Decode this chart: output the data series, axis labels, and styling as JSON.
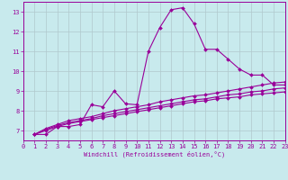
{
  "xlabel": "Windchill (Refroidissement éolien,°C)",
  "bg_color": "#c8eaed",
  "line_color": "#990099",
  "grid_color": "#b0c8cc",
  "xlim": [
    0,
    23
  ],
  "ylim": [
    6.5,
    13.5
  ],
  "xticks": [
    0,
    1,
    2,
    3,
    4,
    5,
    6,
    7,
    8,
    9,
    10,
    11,
    12,
    13,
    14,
    15,
    16,
    17,
    18,
    19,
    20,
    21,
    22,
    23
  ],
  "yticks": [
    7,
    8,
    9,
    10,
    11,
    12,
    13
  ],
  "series_x": [
    [
      1,
      2,
      3,
      4,
      5,
      6,
      7,
      8,
      9,
      10,
      11,
      12,
      13,
      14,
      15,
      16,
      17,
      18,
      19,
      20,
      21,
      22,
      23
    ],
    [
      1,
      2,
      3,
      4,
      5,
      6,
      7,
      8,
      9,
      10,
      11,
      12,
      13,
      14,
      15,
      16,
      17,
      18,
      19,
      20,
      21,
      22,
      23
    ],
    [
      1,
      2,
      3,
      4,
      5,
      6,
      7,
      8,
      9,
      10,
      11,
      12,
      13,
      14,
      15,
      16,
      17,
      18,
      19,
      20,
      21,
      22,
      23
    ],
    [
      1,
      2,
      3,
      4,
      5,
      6,
      7,
      8,
      9,
      10,
      11,
      12,
      13,
      14,
      15,
      16,
      17,
      18,
      19,
      20,
      21,
      22,
      23
    ]
  ],
  "series_y": [
    [
      6.8,
      6.8,
      7.2,
      7.2,
      7.3,
      8.3,
      8.2,
      9.0,
      8.35,
      8.3,
      11.0,
      12.2,
      13.1,
      13.2,
      12.4,
      11.1,
      11.1,
      10.6,
      10.1,
      9.8,
      9.8,
      9.3,
      9.3
    ],
    [
      6.8,
      7.1,
      7.3,
      7.5,
      7.6,
      7.7,
      7.85,
      8.0,
      8.1,
      8.2,
      8.3,
      8.45,
      8.55,
      8.65,
      8.75,
      8.8,
      8.9,
      9.0,
      9.1,
      9.2,
      9.3,
      9.4,
      9.45
    ],
    [
      6.8,
      7.05,
      7.25,
      7.4,
      7.5,
      7.6,
      7.75,
      7.85,
      7.95,
      8.05,
      8.15,
      8.25,
      8.35,
      8.45,
      8.55,
      8.6,
      8.7,
      8.8,
      8.85,
      8.95,
      9.0,
      9.1,
      9.15
    ],
    [
      6.8,
      7.0,
      7.2,
      7.35,
      7.45,
      7.55,
      7.65,
      7.75,
      7.85,
      7.95,
      8.05,
      8.15,
      8.25,
      8.35,
      8.45,
      8.5,
      8.6,
      8.65,
      8.7,
      8.8,
      8.85,
      8.9,
      8.95
    ]
  ],
  "linestyles": [
    "-",
    "-",
    "-",
    "-"
  ]
}
